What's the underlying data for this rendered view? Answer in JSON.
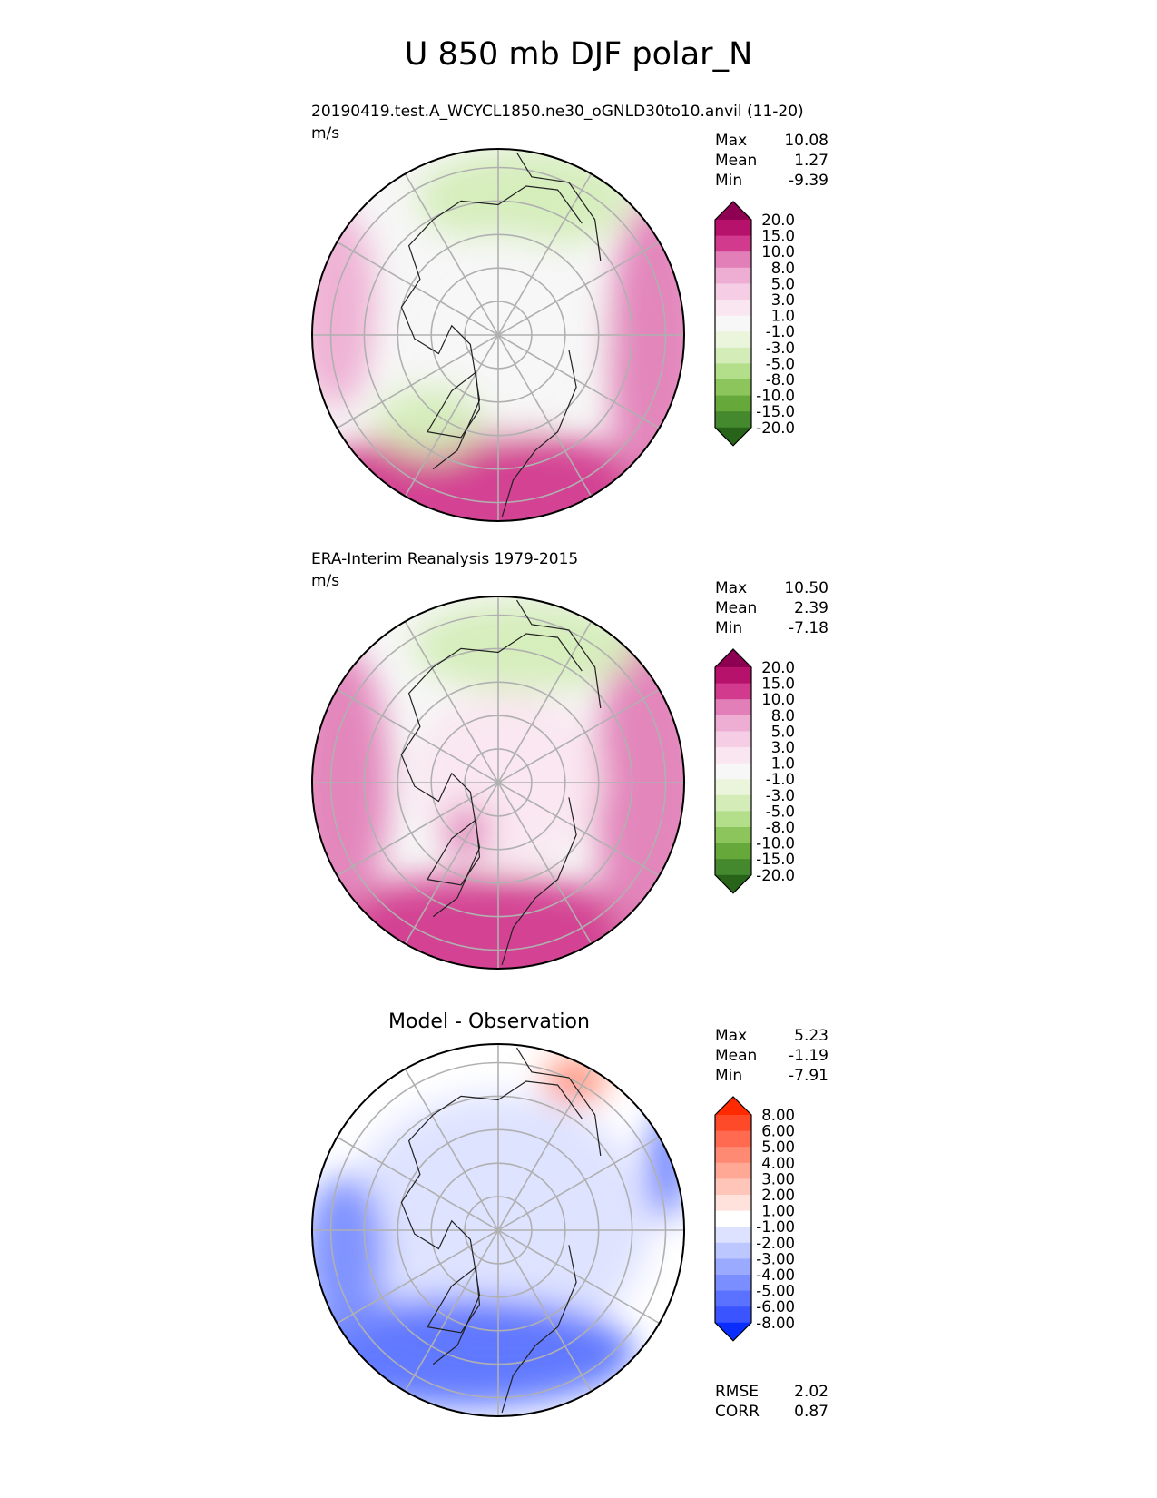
{
  "figure": {
    "title": "U 850 mb DJF polar_N"
  },
  "chart_data": [
    {
      "type": "heatmap",
      "projection": "north-polar-stereographic",
      "title": "20190419.test.A_WCYCL1850.ne30_oGNLD30to10.anvil (11-20)",
      "units": "m/s",
      "stats": [
        {
          "label": "Max",
          "value": "10.08"
        },
        {
          "label": "Mean",
          "value": "1.27"
        },
        {
          "label": "Min",
          "value": "-9.39"
        }
      ],
      "colorbar": {
        "levels": [
          "20.0",
          "15.0",
          "10.0",
          "8.0",
          "5.0",
          "3.0",
          "1.0",
          "-1.0",
          "-3.0",
          "-5.0",
          "-8.0",
          "-10.0",
          "-15.0",
          "-20.0"
        ],
        "colors": [
          "#8e0152",
          "#b6126b",
          "#d23a8d",
          "#e27fb8",
          "#eeaed3",
          "#f5cde5",
          "#fae6f0",
          "#f7f7f7",
          "#ebf5dc",
          "#d4edb8",
          "#b3de8a",
          "#8cc55c",
          "#66a83a",
          "#44892d",
          "#276419"
        ]
      },
      "regions": [
        {
          "name": "model-strong-positive-southern-rim",
          "value": 10
        },
        {
          "name": "model-positive-east-rim",
          "value": 8
        },
        {
          "name": "model-negative-north-siberia",
          "value": -5
        },
        {
          "name": "model-near-zero-arctic",
          "value": 0
        },
        {
          "name": "model-negative-greenland-west",
          "value": -5
        },
        {
          "name": "model-positive-west-rim",
          "value": 5
        }
      ]
    },
    {
      "type": "heatmap",
      "projection": "north-polar-stereographic",
      "title": "ERA-Interim Reanalysis 1979-2015",
      "units": "m/s",
      "stats": [
        {
          "label": "Max",
          "value": "10.50"
        },
        {
          "label": "Mean",
          "value": "2.39"
        },
        {
          "label": "Min",
          "value": "-7.18"
        }
      ],
      "colorbar": {
        "levels": [
          "20.0",
          "15.0",
          "10.0",
          "8.0",
          "5.0",
          "3.0",
          "1.0",
          "-1.0",
          "-3.0",
          "-5.0",
          "-8.0",
          "-10.0",
          "-15.0",
          "-20.0"
        ],
        "colors": [
          "#8e0152",
          "#b6126b",
          "#d23a8d",
          "#e27fb8",
          "#eeaed3",
          "#f5cde5",
          "#fae6f0",
          "#f7f7f7",
          "#ebf5dc",
          "#d4edb8",
          "#b3de8a",
          "#8cc55c",
          "#66a83a",
          "#44892d",
          "#276419"
        ]
      },
      "regions": [
        {
          "name": "obs-strong-positive-southern-rim",
          "value": 10
        },
        {
          "name": "obs-positive-east-rim",
          "value": 8
        },
        {
          "name": "obs-negative-north-siberia",
          "value": -5
        },
        {
          "name": "obs-near-zero-arctic",
          "value": 1
        },
        {
          "name": "obs-positive-greenland",
          "value": 8
        },
        {
          "name": "obs-positive-west-rim",
          "value": 8
        }
      ]
    },
    {
      "type": "heatmap",
      "projection": "north-polar-stereographic",
      "title": "Model - Observation",
      "stats": [
        {
          "label": "Max",
          "value": "5.23"
        },
        {
          "label": "Mean",
          "value": "-1.19"
        },
        {
          "label": "Min",
          "value": "-7.91"
        }
      ],
      "metrics": [
        {
          "label": "RMSE",
          "value": "2.02"
        },
        {
          "label": "CORR",
          "value": "0.87"
        }
      ],
      "colorbar": {
        "levels": [
          "8.00",
          "6.00",
          "5.00",
          "4.00",
          "3.00",
          "2.00",
          "1.00",
          "-1.00",
          "-2.00",
          "-3.00",
          "-4.00",
          "-5.00",
          "-6.00",
          "-8.00"
        ],
        "colors": [
          "#ff2a00",
          "#ff4a2a",
          "#ff6a50",
          "#ff8a73",
          "#ffa896",
          "#ffc5b8",
          "#ffe2dc",
          "#ffffff",
          "#dce2ff",
          "#bcc7ff",
          "#9aabff",
          "#7a8eff",
          "#5a72ff",
          "#3a55ff",
          "#0a2dff"
        ]
      },
      "regions": [
        {
          "name": "diff-negative-pacific-band",
          "value": -6
        },
        {
          "name": "diff-negative-atlantic-west",
          "value": -5
        },
        {
          "name": "diff-positive-east-rim",
          "value": 4
        },
        {
          "name": "diff-negative-siberia",
          "value": -6
        },
        {
          "name": "diff-weak-negative-ring",
          "value": -1.5
        }
      ]
    }
  ]
}
